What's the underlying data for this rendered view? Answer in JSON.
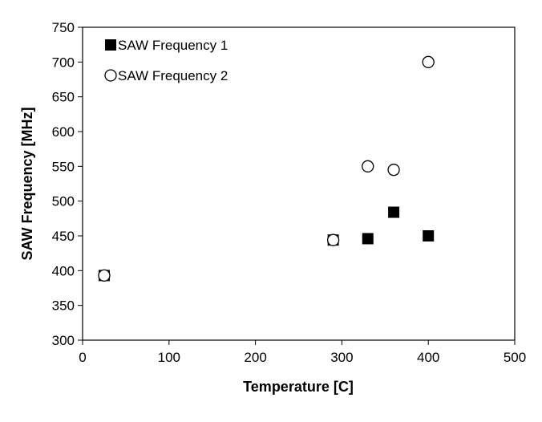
{
  "chart_data": {
    "type": "scatter",
    "xlabel": "Temperature [C]",
    "ylabel": "SAW Frequency [MHz]",
    "xlim": [
      0,
      500
    ],
    "ylim": [
      300,
      750
    ],
    "x_ticks": [
      0,
      100,
      200,
      300,
      400,
      500
    ],
    "y_ticks": [
      300,
      350,
      400,
      450,
      500,
      550,
      600,
      650,
      700,
      750
    ],
    "grid": false,
    "legend_position": "top-left",
    "series": [
      {
        "name": "SAW Frequency 1",
        "marker": "filled-square",
        "color": "#000000",
        "x": [
          25,
          290,
          330,
          360,
          400
        ],
        "y": [
          393,
          444,
          446,
          484,
          450
        ]
      },
      {
        "name": "SAW Frequency 2",
        "marker": "open-circle",
        "color": "#000000",
        "x": [
          25,
          290,
          330,
          360,
          400
        ],
        "y": [
          393,
          444,
          550,
          545,
          700
        ]
      }
    ]
  }
}
